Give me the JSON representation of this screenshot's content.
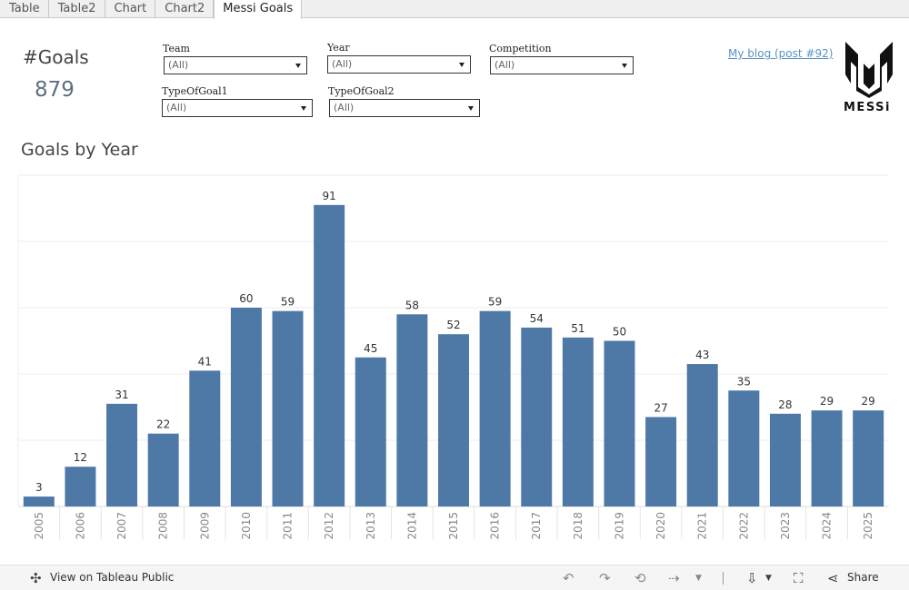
{
  "tabs": [
    {
      "label": "Table",
      "active": false
    },
    {
      "label": "Table2",
      "active": false
    },
    {
      "label": "Chart",
      "active": false
    },
    {
      "label": "Chart2",
      "active": false
    },
    {
      "label": "Messi Goals",
      "active": true
    }
  ],
  "kpi": {
    "title": "#Goals",
    "value": "879"
  },
  "filters": {
    "team": {
      "label": "Team",
      "value": "(All)"
    },
    "year": {
      "label": "Year",
      "value": "(All)"
    },
    "competition": {
      "label": "Competition",
      "value": "(All)"
    },
    "type1": {
      "label": "TypeOfGoal1",
      "value": "(All)"
    },
    "type2": {
      "label": "TypeOfGoal2",
      "value": "(All)"
    }
  },
  "blog_link": "My blog (post #92)",
  "logo": {
    "text": "MESSi"
  },
  "chart_data": {
    "type": "bar",
    "title": "Goals by Year",
    "categories": [
      "2005",
      "2006",
      "2007",
      "2008",
      "2009",
      "2010",
      "2011",
      "2012",
      "2013",
      "2014",
      "2015",
      "2016",
      "2017",
      "2018",
      "2019",
      "2020",
      "2021",
      "2022",
      "2023",
      "2024",
      "2025"
    ],
    "values": [
      3,
      12,
      31,
      22,
      41,
      60,
      59,
      91,
      45,
      58,
      52,
      59,
      54,
      51,
      50,
      27,
      43,
      35,
      28,
      29,
      29
    ],
    "xlabel": "",
    "ylabel": "",
    "ylim": [
      0,
      100
    ],
    "grid": true,
    "color": "#4e79a7",
    "data_labels": true
  },
  "toolbar": {
    "view_label": "View on Tableau Public",
    "share_label": "Share",
    "icons": [
      "undo-icon",
      "redo-icon",
      "revert-icon",
      "refresh-icon",
      "download-icon",
      "fullscreen-icon",
      "share-icon"
    ]
  }
}
